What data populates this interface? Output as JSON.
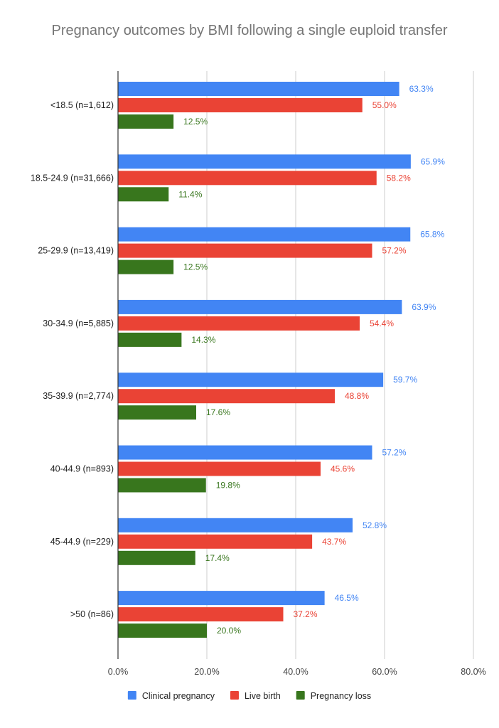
{
  "chart_data": {
    "type": "bar",
    "orientation": "horizontal",
    "title": "Pregnancy outcomes by BMI following a single euploid transfer",
    "categories": [
      "<18.5 (n=1,612)",
      "18.5-24.9 (n=31,666)",
      "25-29.9 (n=13,419)",
      "30-34.9 (n=5,885)",
      "35-39.9 (n=2,774)",
      "40-44.9 (n=893)",
      "45-44.9 (n=229)",
      ">50 (n=86)"
    ],
    "series": [
      {
        "name": "Clinical pregnancy",
        "color": "#4285f4",
        "values": [
          63.3,
          65.9,
          65.8,
          63.9,
          59.7,
          57.2,
          52.8,
          46.5
        ],
        "labels": [
          "63.3%",
          "65.9%",
          "65.8%",
          "63.9%",
          "59.7%",
          "57.2%",
          "52.8%",
          "46.5%"
        ]
      },
      {
        "name": "Live birth",
        "color": "#ea4335",
        "values": [
          55.0,
          58.2,
          57.2,
          54.4,
          48.8,
          45.6,
          43.7,
          37.2
        ],
        "labels": [
          "55.0%",
          "58.2%",
          "57.2%",
          "54.4%",
          "48.8%",
          "45.6%",
          "43.7%",
          "37.2%"
        ]
      },
      {
        "name": "Pregnancy loss",
        "color": "#38761d",
        "values": [
          12.5,
          11.4,
          12.5,
          14.3,
          17.6,
          19.8,
          17.4,
          20.0
        ],
        "labels": [
          "12.5%",
          "11.4%",
          "12.5%",
          "14.3%",
          "17.6%",
          "19.8%",
          "17.4%",
          "20.0%"
        ]
      }
    ],
    "xlim": [
      0,
      80
    ],
    "xticks": [
      0,
      20,
      40,
      60,
      80
    ],
    "xtick_labels": [
      "0.0%",
      "20.0%",
      "40.0%",
      "60.0%",
      "80.0%"
    ],
    "grid": true,
    "legend_position": "bottom"
  }
}
